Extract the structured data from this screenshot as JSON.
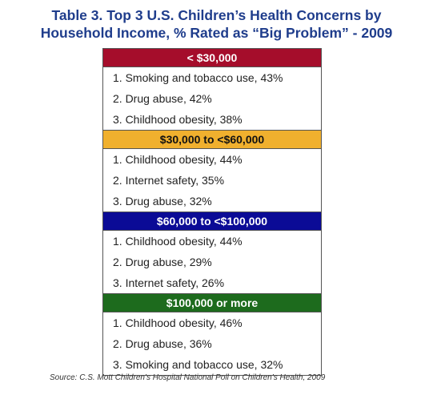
{
  "title": "Table 3. Top 3 U.S. Children’s Health Concerns by Household Income, % Rated as “Big Problem” - 2009",
  "table": {
    "groups": [
      {
        "header": "< $30,000",
        "rows": [
          "1. Smoking and tobacco use, 43%",
          "2. Drug abuse, 42%",
          "3. Childhood obesity, 38%"
        ]
      },
      {
        "header": "$30,000 to <$60,000",
        "rows": [
          "1. Childhood obesity, 44%",
          "2. Internet safety, 35%",
          "3. Drug abuse, 32%"
        ]
      },
      {
        "header": "$60,000 to <$100,000",
        "rows": [
          "1. Childhood obesity, 44%",
          "2. Drug abuse, 29%",
          "3. Internet safety, 26%"
        ]
      },
      {
        "header": "$100,000 or more",
        "rows": [
          "1. Childhood obesity, 46%",
          "2. Drug abuse, 36%",
          "3. Smoking and tobacco use, 32%"
        ]
      }
    ]
  },
  "source": "Source: C.S. Mott Children’s Hospital National Poll on Children’s Health, 2009"
}
